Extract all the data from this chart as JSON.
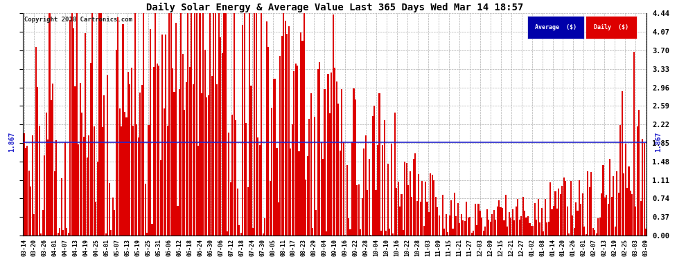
{
  "title": "Daily Solar Energy & Average Value Last 365 Days Wed Mar 14 18:57",
  "copyright": "Copyright 2018 Cartronics.com",
  "average_value": 1.867,
  "average_label": "1.867",
  "ylim": [
    0.0,
    4.44
  ],
  "yticks": [
    0.0,
    0.37,
    0.74,
    1.11,
    1.48,
    1.85,
    2.22,
    2.59,
    2.96,
    3.33,
    3.7,
    4.07,
    4.44
  ],
  "bar_color": "#dd0000",
  "avg_line_color": "#2222cc",
  "background_color": "#ffffff",
  "grid_color": "#999999",
  "title_color": "#000000",
  "legend_avg_bg": "#0000aa",
  "legend_daily_bg": "#cc0000",
  "xtick_labels": [
    "03-14",
    "03-20",
    "03-26",
    "04-01",
    "04-07",
    "04-13",
    "04-19",
    "04-25",
    "05-01",
    "05-07",
    "05-13",
    "05-19",
    "05-25",
    "05-31",
    "06-06",
    "06-12",
    "06-18",
    "06-24",
    "06-30",
    "07-06",
    "07-12",
    "07-18",
    "07-24",
    "07-30",
    "08-05",
    "08-11",
    "08-17",
    "08-23",
    "08-29",
    "09-04",
    "09-10",
    "09-16",
    "09-22",
    "09-28",
    "10-04",
    "10-10",
    "10-16",
    "10-22",
    "10-28",
    "11-03",
    "11-09",
    "11-15",
    "11-21",
    "11-27",
    "12-03",
    "12-09",
    "12-15",
    "12-21",
    "12-27",
    "01-02",
    "01-08",
    "01-14",
    "01-20",
    "01-26",
    "02-01",
    "02-07",
    "02-13",
    "02-19",
    "02-25",
    "03-03",
    "03-09"
  ],
  "num_bars": 365,
  "figsize": [
    9.9,
    3.75
  ],
  "dpi": 100
}
